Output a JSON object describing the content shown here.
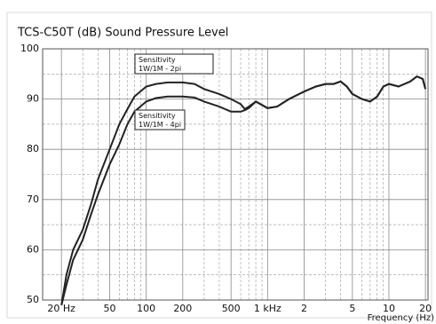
{
  "chart_data": {
    "type": "line",
    "title": "TCS-C50T (dB) Sound Pressure Level",
    "x_label": "Frequency (Hz)",
    "log_x": true,
    "x": [
      20,
      22,
      25,
      30,
      35,
      40,
      50,
      60,
      70,
      80,
      100,
      120,
      150,
      200,
      250,
      300,
      400,
      500,
      600,
      650,
      700,
      800,
      1000,
      1200,
      1500,
      2000,
      2500,
      3000,
      3500,
      4000,
      4500,
      5000,
      6000,
      7000,
      8000,
      9000,
      10000,
      12000,
      15000,
      17000,
      19000,
      20000
    ],
    "series": [
      {
        "name": "Sensitivity 1W/1M - 2pi",
        "color": "#222222",
        "values": [
          49,
          55,
          60,
          64,
          69,
          74,
          80,
          85,
          88,
          90.5,
          92.5,
          93,
          93.3,
          93.3,
          93,
          92,
          91,
          90,
          89,
          88,
          88.5,
          89.5,
          88.2,
          88.5,
          90,
          91.5,
          92.5,
          93,
          93,
          93.5,
          92.5,
          91,
          90,
          89.5,
          90.5,
          92.5,
          93,
          92.5,
          93.5,
          94.5,
          94,
          92
        ]
      },
      {
        "name": "Sensitivity 1W/1M - 4pi",
        "color": "#222222",
        "values": [
          49,
          53,
          58,
          62,
          67,
          71,
          77,
          81,
          85,
          87.5,
          89.5,
          90.2,
          90.5,
          90.5,
          90.3,
          89.5,
          88.5,
          87.5,
          87.5,
          87.8,
          88.2,
          89.5,
          88.2,
          88.5,
          90,
          91.5,
          92.5,
          93,
          93,
          93.5,
          92.5,
          91,
          90,
          89.5,
          90.5,
          92.5,
          93,
          92.5,
          93.5,
          94.5,
          94,
          92
        ]
      }
    ],
    "xlim": [
      14,
      21000
    ],
    "xticks": [
      {
        "value": 20,
        "label": "20 Hz"
      },
      50,
      100,
      200,
      500,
      {
        "value": 1000,
        "label": "1 kHz"
      },
      {
        "value": 2000,
        "label": "2"
      },
      {
        "value": 5000,
        "label": "5"
      },
      {
        "value": 10000,
        "label": "10"
      },
      {
        "value": 20000,
        "label": "20"
      }
    ],
    "minor_xticks": [
      30,
      40,
      60,
      70,
      80,
      90,
      300,
      400,
      600,
      700,
      800,
      900,
      3000,
      4000,
      6000,
      7000,
      8000,
      9000
    ],
    "ylim": [
      50,
      100
    ],
    "yticks": [
      50,
      60,
      70,
      80,
      90,
      100
    ],
    "minor_yticks": [
      55,
      65,
      75,
      85,
      95
    ],
    "grid": true
  }
}
